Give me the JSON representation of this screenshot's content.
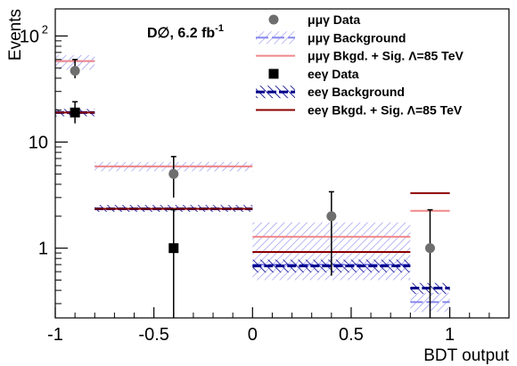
{
  "chart_data": {
    "type": "step-histogram",
    "xlabel": "BDT output",
    "ylabel": "Events",
    "xlim": [
      -1,
      1.3
    ],
    "ylim": [
      0.22,
      180
    ],
    "yscale": "log",
    "grid": false,
    "legend_position": "top-right",
    "x_ticks": [
      -1,
      -0.5,
      0,
      0.5,
      1
    ],
    "x_tick_labels": [
      "-1",
      "-0.5",
      "0",
      "0.5",
      "1"
    ],
    "y_ticks": [
      1,
      10,
      100
    ],
    "y_tick_labels": [
      "1",
      "10",
      "10",
      "2"
    ],
    "annotation": {
      "text": "D∅, 6.2 fb",
      "superscript": "-1"
    },
    "colors": {
      "mumu_data": "#6e6e6e",
      "mumu_background": "#8888ee",
      "mumu_signal": "#f0888a",
      "ee_data": "#000000",
      "ee_background": "#00008b",
      "ee_signal": "#8b0000"
    },
    "legend": [
      {
        "label": "μμγ Data",
        "key": "mumu_data"
      },
      {
        "label": "μμγ Background",
        "key": "mumu_background"
      },
      {
        "label": "μμγ Bkgd. + Sig. Λ=85 TeV",
        "key": "mumu_signal"
      },
      {
        "label": "eeγ Data",
        "key": "ee_data"
      },
      {
        "label": "eeγ Background",
        "key": "ee_background"
      },
      {
        "label": "eeγ Bkgd. + Sig. Λ=85 TeV",
        "key": "ee_signal"
      }
    ],
    "bins": [
      {
        "x0": -1.0,
        "x1": -0.8,
        "xc": -0.9
      },
      {
        "x0": -0.8,
        "x1": 0.0,
        "xc": -0.4
      },
      {
        "x0": 0.0,
        "x1": 0.8,
        "xc": 0.4
      },
      {
        "x0": 0.8,
        "x1": 1.0,
        "xc": 0.9
      }
    ],
    "series": [
      {
        "name": "μμγ Background",
        "key": "mumu_background",
        "kind": "band",
        "values": [
          58,
          5.9,
          0.7,
          0.31
        ],
        "lo": [
          48,
          5.3,
          0.5,
          0.25
        ],
        "hi": [
          66,
          6.5,
          1.75,
          0.38
        ]
      },
      {
        "name": "eeγ Background",
        "key": "ee_background",
        "kind": "band",
        "values": [
          19,
          2.35,
          0.68,
          0.42
        ],
        "lo": [
          17.5,
          2.2,
          0.59,
          0.37
        ],
        "hi": [
          20.5,
          2.55,
          0.78,
          0.47
        ]
      },
      {
        "name": "μμγ Bkgd. + Sig. Λ=85 TeV",
        "key": "mumu_signal",
        "kind": "line",
        "values": [
          58,
          5.9,
          1.28,
          2.25
        ]
      },
      {
        "name": "eeγ Bkgd. + Sig. Λ=85 TeV",
        "key": "ee_signal",
        "kind": "line",
        "values": [
          19,
          2.35,
          0.92,
          3.3
        ]
      },
      {
        "name": "μμγ Data",
        "key": "mumu_data",
        "kind": "points-circle",
        "values": [
          47,
          5,
          2,
          1
        ],
        "err_lo": [
          40,
          3,
          0.55,
          0.22
        ],
        "err_hi": [
          60,
          7.3,
          3.4,
          2.3
        ]
      },
      {
        "name": "eeγ Data",
        "key": "ee_data",
        "kind": "points-square",
        "values": [
          19,
          1,
          null,
          null
        ],
        "err_lo": [
          15,
          0.22,
          null,
          null
        ],
        "err_hi": [
          24,
          2.3,
          null,
          null
        ]
      }
    ]
  }
}
